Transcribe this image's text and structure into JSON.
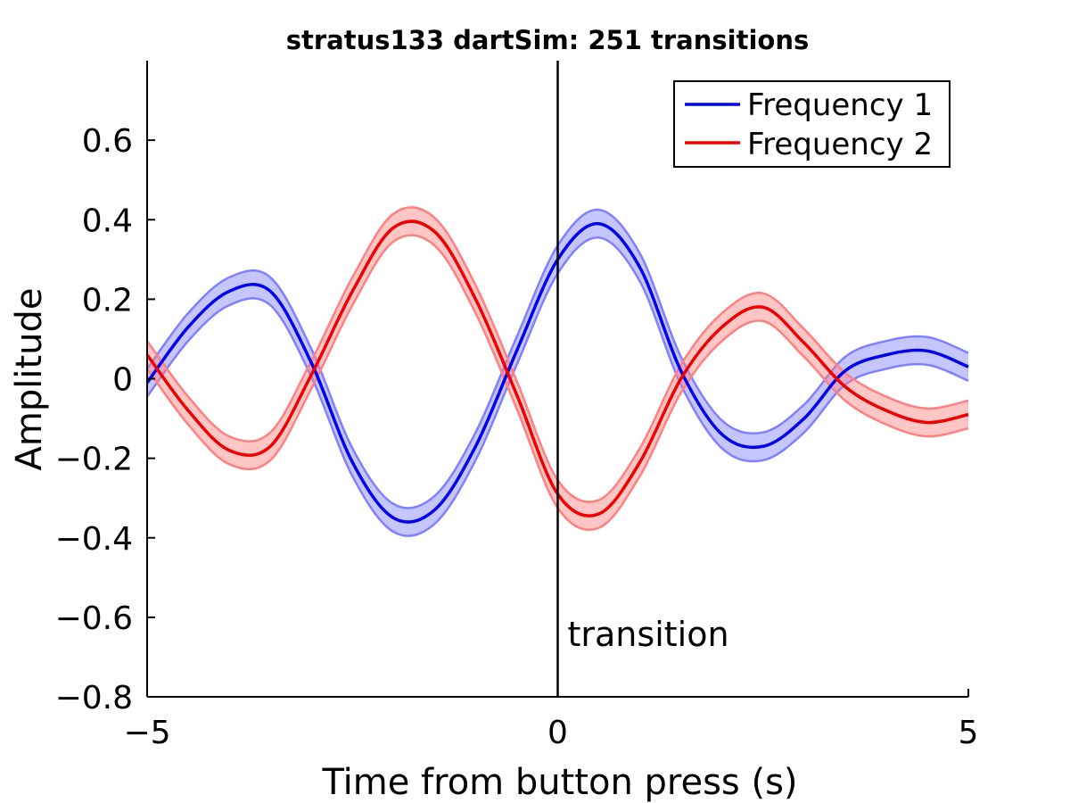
{
  "chart_data": {
    "type": "line",
    "title": "stratus133 dartSim: 251 transitions",
    "xlabel": "Time from button press (s)",
    "ylabel": "Amplitude",
    "xlim": [
      -5,
      5
    ],
    "ylim": [
      -0.8,
      0.8
    ],
    "x_ticks": [
      -5,
      0,
      5
    ],
    "x_tick_labels": [
      "−5",
      "0",
      "5"
    ],
    "y_ticks": [
      -0.8,
      -0.6,
      -0.4,
      -0.2,
      0,
      0.2,
      0.4,
      0.6
    ],
    "y_tick_labels": [
      "−0.8",
      "−0.6",
      "−0.4",
      "−0.2",
      "0",
      "0.2",
      "0.4",
      "0.6"
    ],
    "grid": false,
    "legend_position": "top-right",
    "x": [
      -5.0,
      -4.5,
      -4.0,
      -3.5,
      -3.0,
      -2.5,
      -2.0,
      -1.5,
      -1.0,
      -0.5,
      0.0,
      0.5,
      1.0,
      1.5,
      2.0,
      2.5,
      3.0,
      3.5,
      4.0,
      4.5,
      5.0
    ],
    "series": [
      {
        "name": "Frequency 1",
        "color": "#0000ee",
        "band_color": "#8080ff",
        "values": [
          -0.01,
          0.13,
          0.22,
          0.22,
          0.04,
          -0.21,
          -0.35,
          -0.33,
          -0.17,
          0.07,
          0.3,
          0.39,
          0.28,
          0.02,
          -0.14,
          -0.17,
          -0.1,
          0.02,
          0.06,
          0.07,
          0.03
        ],
        "error": [
          0.035,
          0.035,
          0.035,
          0.035,
          0.035,
          0.035,
          0.035,
          0.035,
          0.035,
          0.035,
          0.035,
          0.035,
          0.035,
          0.035,
          0.035,
          0.035,
          0.035,
          0.035,
          0.035,
          0.035,
          0.035
        ]
      },
      {
        "name": "Frequency 2",
        "color": "#ee0000",
        "band_color": "#ff8080",
        "values": [
          0.06,
          -0.08,
          -0.18,
          -0.17,
          0.01,
          0.22,
          0.38,
          0.37,
          0.2,
          -0.04,
          -0.29,
          -0.34,
          -0.21,
          0.0,
          0.13,
          0.18,
          0.09,
          -0.02,
          -0.08,
          -0.11,
          -0.09
        ],
        "error": [
          0.035,
          0.035,
          0.035,
          0.035,
          0.035,
          0.035,
          0.035,
          0.035,
          0.035,
          0.035,
          0.035,
          0.035,
          0.035,
          0.035,
          0.035,
          0.035,
          0.035,
          0.035,
          0.035,
          0.035,
          0.035
        ]
      }
    ],
    "annotations": [
      {
        "type": "vertical-line",
        "x": 0,
        "text": "transition"
      }
    ]
  }
}
